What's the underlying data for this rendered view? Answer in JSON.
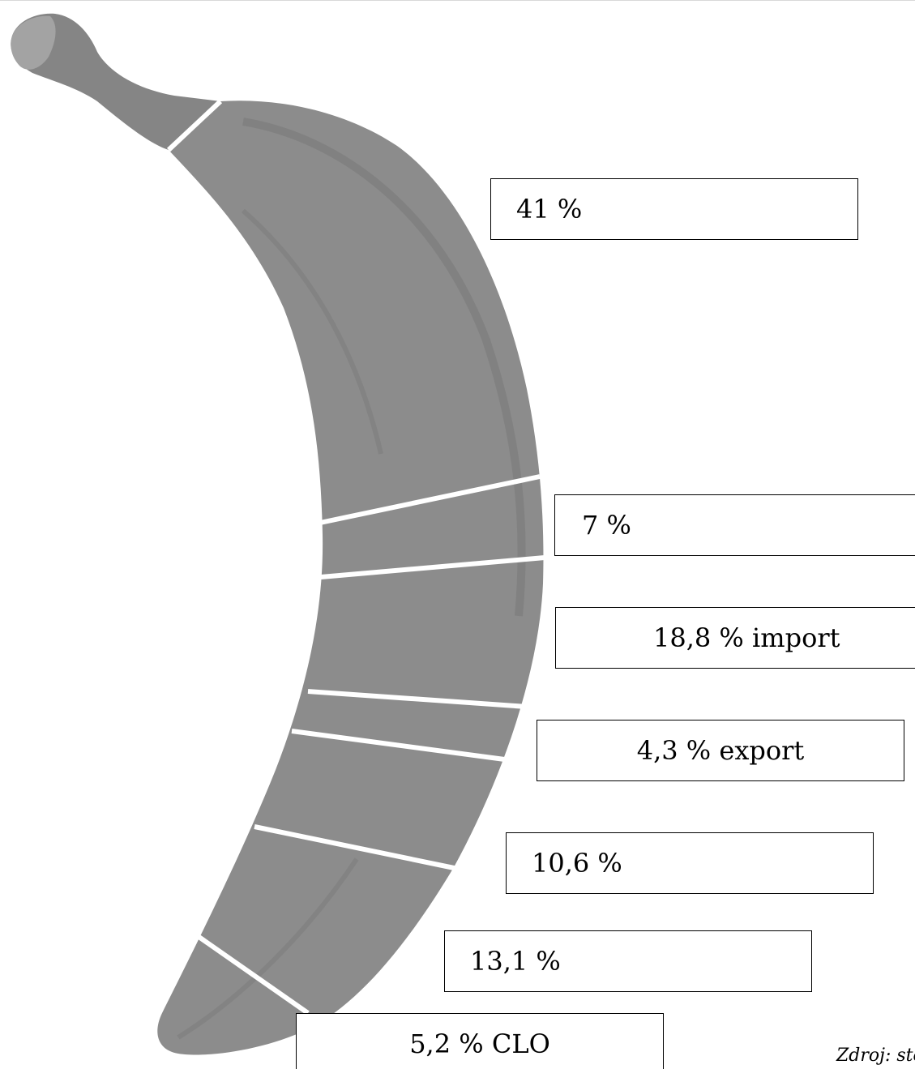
{
  "segments": [
    {
      "label": "41 %"
    },
    {
      "label": "7 %"
    },
    {
      "label": "18,8 % import"
    },
    {
      "label": "4,3 % export"
    },
    {
      "label": "10,6 %"
    },
    {
      "label": "13,1 %"
    },
    {
      "label": "5,2 % CLO"
    }
  ],
  "source": "Zdroj: sto",
  "colors": {
    "banana_body": "#8c8c8c",
    "banana_shade": "#7a7a7a",
    "stem": "#858585",
    "tip": "#a3a3a3",
    "divider": "#ffffff",
    "box_border": "#000000"
  }
}
